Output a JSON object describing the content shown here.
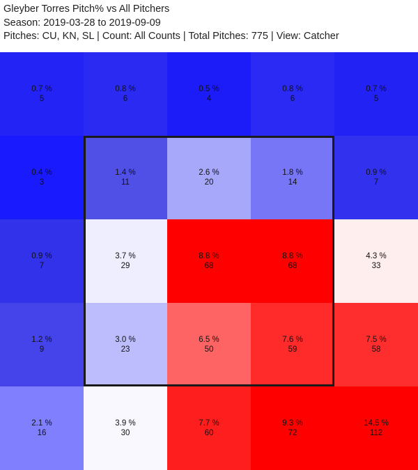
{
  "header": {
    "title": "Gleyber Torres Pitch% vs All Pitchers",
    "season": "Season: 2019-03-28 to 2019-09-09",
    "filters": "Pitches: CU, KN, SL | Count: All Counts | Total Pitches: 775 | View: Catcher"
  },
  "chart_data": {
    "type": "heatmap",
    "rows": 5,
    "cols": 5,
    "strike_zone": {
      "row_start": 1,
      "row_end": 3,
      "col_start": 1,
      "col_end": 3
    },
    "color_low": "#0000ff",
    "color_mid": "#ffffff",
    "color_high": "#ff0000",
    "cells": [
      [
        {
          "pct": "0.7 %",
          "count": "5",
          "color": "#2323f6"
        },
        {
          "pct": "0.8 %",
          "count": "6",
          "color": "#2a2af3"
        },
        {
          "pct": "0.5 %",
          "count": "4",
          "color": "#1c1cf8"
        },
        {
          "pct": "0.8 %",
          "count": "6",
          "color": "#2a2af4"
        },
        {
          "pct": "0.7 %",
          "count": "5",
          "color": "#2222f4"
        }
      ],
      [
        {
          "pct": "0.4 %",
          "count": "3",
          "color": "#1a1aff"
        },
        {
          "pct": "1.4 %",
          "count": "11",
          "color": "#5050e6"
        },
        {
          "pct": "2.6 %",
          "count": "20",
          "color": "#a8a8fb"
        },
        {
          "pct": "1.8 %",
          "count": "14",
          "color": "#7676f6"
        },
        {
          "pct": "0.9 %",
          "count": "7",
          "color": "#3232ee"
        }
      ],
      [
        {
          "pct": "0.9 %",
          "count": "7",
          "color": "#3232ea"
        },
        {
          "pct": "3.7 %",
          "count": "29",
          "color": "#eeeefe"
        },
        {
          "pct": "8.8 %",
          "count": "68",
          "color": "#ff0000"
        },
        {
          "pct": "8.8 %",
          "count": "68",
          "color": "#ff0000"
        },
        {
          "pct": "4.3 %",
          "count": "33",
          "color": "#ffeeee"
        }
      ],
      [
        {
          "pct": "1.2 %",
          "count": "9",
          "color": "#4444ea"
        },
        {
          "pct": "3.0 %",
          "count": "23",
          "color": "#bdbdfd"
        },
        {
          "pct": "6.5 %",
          "count": "50",
          "color": "#ff6464"
        },
        {
          "pct": "7.6 %",
          "count": "59",
          "color": "#ff2a2a"
        },
        {
          "pct": "7.5 %",
          "count": "58",
          "color": "#ff2e2e"
        }
      ],
      [
        {
          "pct": "2.1 %",
          "count": "16",
          "color": "#8080ff"
        },
        {
          "pct": "3.9 %",
          "count": "30",
          "color": "#f8f8fe"
        },
        {
          "pct": "7.7 %",
          "count": "60",
          "color": "#ff1e1e"
        },
        {
          "pct": "9.3 %",
          "count": "72",
          "color": "#ff0000"
        },
        {
          "pct": "14.5 %",
          "count": "112",
          "color": "#ff0000"
        }
      ]
    ]
  }
}
